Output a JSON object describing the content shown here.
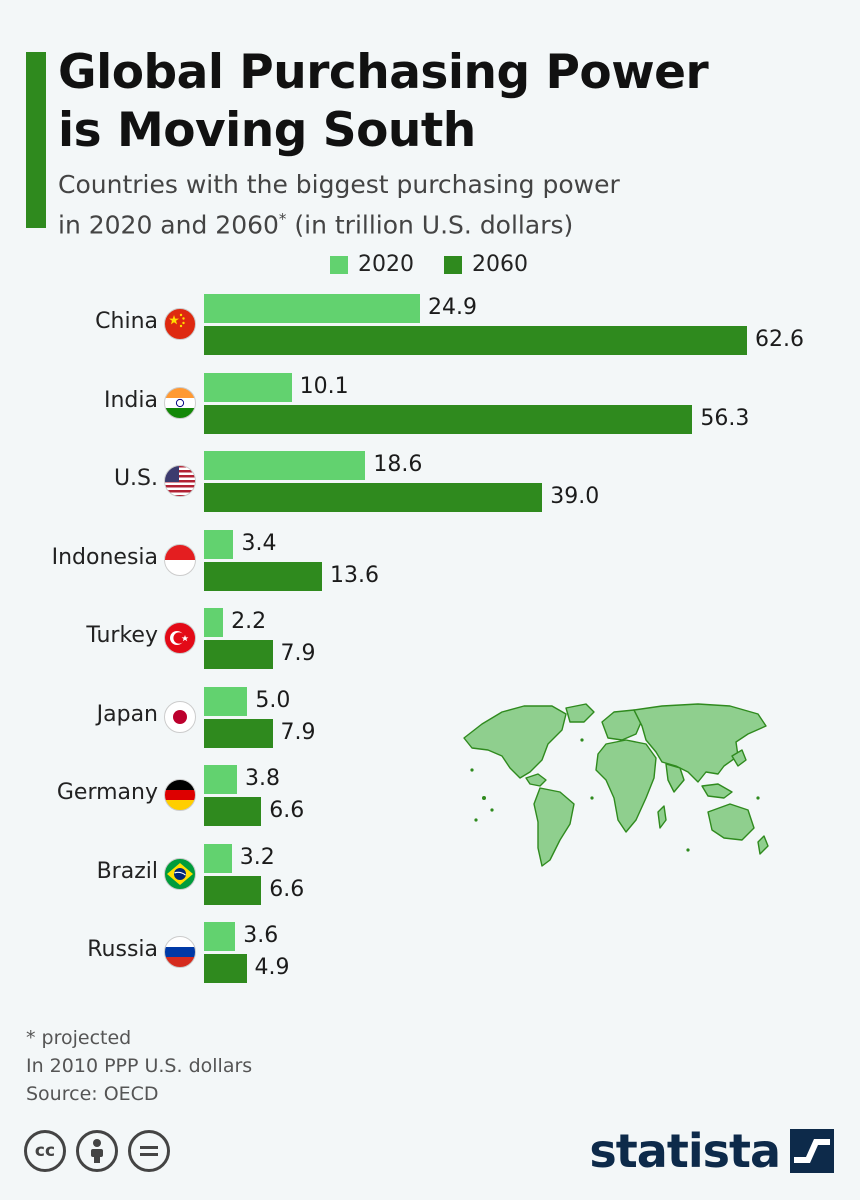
{
  "header": {
    "title_line1": "Global Purchasing Power",
    "title_line2": "is Moving South",
    "subtitle_line1": "Countries with the biggest purchasing power",
    "subtitle_line2_pre": "in 2020 and 2060",
    "subtitle_line2_sup": "*",
    "subtitle_line2_post": " (in trillion U.S. dollars)"
  },
  "colors": {
    "accent": "#2f8a1e",
    "series_2020": "#62d26f",
    "series_2060": "#2f8a1e",
    "brand": "#0d2a4a"
  },
  "chart_data": {
    "type": "bar",
    "orientation": "horizontal",
    "categories": [
      "China",
      "India",
      "U.S.",
      "Indonesia",
      "Turkey",
      "Japan",
      "Germany",
      "Brazil",
      "Russia"
    ],
    "series": [
      {
        "name": "2020",
        "values": [
          24.9,
          10.1,
          18.6,
          3.4,
          2.2,
          5.0,
          3.8,
          3.2,
          3.6
        ],
        "labels": [
          "24.9",
          "10.1",
          "18.6",
          "3.4",
          "2.2",
          "5.0",
          "3.8",
          "3.2",
          "3.6"
        ]
      },
      {
        "name": "2060",
        "values": [
          62.6,
          56.3,
          39.0,
          13.6,
          7.9,
          7.9,
          6.6,
          6.6,
          4.9
        ],
        "labels": [
          "62.6",
          "56.3",
          "39.0",
          "13.6",
          "7.9",
          "7.9",
          "6.6",
          "6.6",
          "4.9"
        ]
      }
    ],
    "xlim": [
      0,
      62.6
    ],
    "legend_position": "top",
    "grid": false
  },
  "flags": [
    "china-flag-icon",
    "india-flag-icon",
    "us-flag-icon",
    "indonesia-flag-icon",
    "turkey-flag-icon",
    "japan-flag-icon",
    "germany-flag-icon",
    "brazil-flag-icon",
    "russia-flag-icon"
  ],
  "footer": {
    "note1": "* projected",
    "note2": "In 2010 PPP U.S. dollars",
    "source": "Source: OECD",
    "license_icons": [
      "cc-icon",
      "by-icon",
      "nd-icon"
    ],
    "brand": "statista"
  }
}
